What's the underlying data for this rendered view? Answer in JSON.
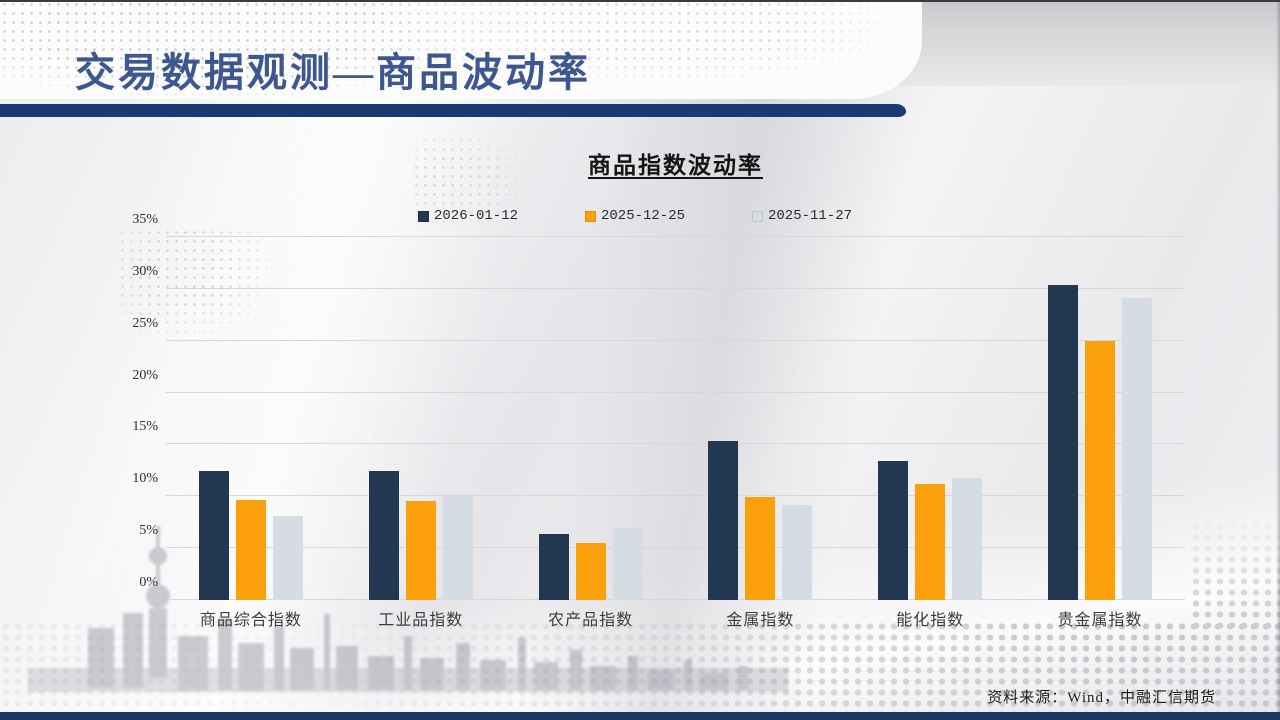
{
  "slide": {
    "header_title": "交易数据观测—商品波动率",
    "source_note": "资料来源：Wind，中融汇信期货"
  },
  "chart_data": {
    "type": "bar",
    "title": "商品指数波动率",
    "categories": [
      "商品综合指数",
      "工业品指数",
      "农产品指数",
      "金属指数",
      "能化指数",
      "贵金属指数"
    ],
    "series": [
      {
        "name": "2026-01-12",
        "color": "#223750",
        "values": [
          12.4,
          12.4,
          6.4,
          15.3,
          13.4,
          30.4
        ]
      },
      {
        "name": "2025-12-25",
        "color": "#FAA00A",
        "values": [
          9.6,
          9.5,
          5.5,
          9.9,
          11.2,
          25.0
        ]
      },
      {
        "name": "2025-11-27",
        "color": "#D6DCE4",
        "values": [
          8.1,
          10.0,
          6.9,
          9.2,
          11.8,
          29.1
        ]
      }
    ],
    "ylim": [
      0,
      35
    ],
    "ytick_step": 5,
    "ytick_suffix": "%",
    "grid": true,
    "legend_position": "top",
    "colors": {
      "grid": "#d7d7da",
      "accent_bar": "#1a3a74"
    }
  }
}
